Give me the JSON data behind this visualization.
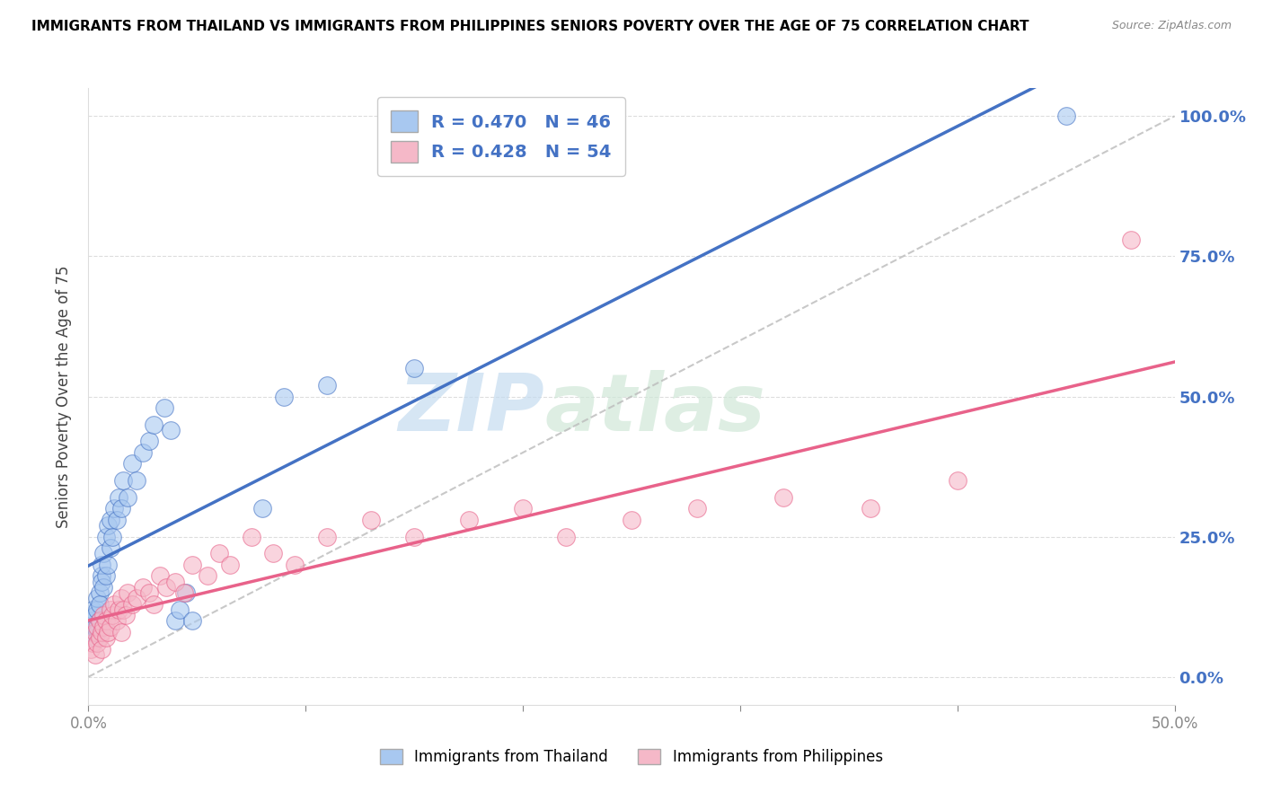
{
  "title": "IMMIGRANTS FROM THAILAND VS IMMIGRANTS FROM PHILIPPINES SENIORS POVERTY OVER THE AGE OF 75 CORRELATION CHART",
  "source": "Source: ZipAtlas.com",
  "ylabel": "Seniors Poverty Over the Age of 75",
  "xlim": [
    0.0,
    0.5
  ],
  "ylim": [
    -0.05,
    1.05
  ],
  "ytick_labels": [
    "0.0%",
    "25.0%",
    "50.0%",
    "75.0%",
    "100.0%"
  ],
  "ytick_values": [
    0.0,
    0.25,
    0.5,
    0.75,
    1.0
  ],
  "r_thailand": 0.47,
  "n_thailand": 46,
  "r_philippines": 0.428,
  "n_philippines": 54,
  "color_thailand": "#A8C8F0",
  "color_philippines": "#F5B8C8",
  "color_trend_thailand": "#4472C4",
  "color_trend_philippines": "#E8628A",
  "color_dashed": "#BBBBBB",
  "thailand_x": [
    0.001,
    0.002,
    0.002,
    0.003,
    0.003,
    0.003,
    0.004,
    0.004,
    0.004,
    0.005,
    0.005,
    0.005,
    0.006,
    0.006,
    0.006,
    0.007,
    0.007,
    0.008,
    0.008,
    0.009,
    0.009,
    0.01,
    0.01,
    0.011,
    0.012,
    0.013,
    0.014,
    0.015,
    0.016,
    0.018,
    0.02,
    0.022,
    0.025,
    0.028,
    0.03,
    0.035,
    0.038,
    0.04,
    0.042,
    0.045,
    0.048,
    0.08,
    0.09,
    0.11,
    0.15,
    0.45
  ],
  "thailand_y": [
    0.08,
    0.1,
    0.12,
    0.07,
    0.09,
    0.11,
    0.08,
    0.12,
    0.14,
    0.1,
    0.15,
    0.13,
    0.18,
    0.17,
    0.2,
    0.16,
    0.22,
    0.18,
    0.25,
    0.2,
    0.27,
    0.23,
    0.28,
    0.25,
    0.3,
    0.28,
    0.32,
    0.3,
    0.35,
    0.32,
    0.38,
    0.35,
    0.4,
    0.42,
    0.45,
    0.48,
    0.44,
    0.1,
    0.12,
    0.15,
    0.1,
    0.3,
    0.5,
    0.52,
    0.55,
    1.0
  ],
  "philippines_x": [
    0.001,
    0.002,
    0.003,
    0.003,
    0.004,
    0.004,
    0.005,
    0.005,
    0.006,
    0.006,
    0.007,
    0.007,
    0.008,
    0.008,
    0.009,
    0.01,
    0.01,
    0.011,
    0.012,
    0.013,
    0.014,
    0.015,
    0.015,
    0.016,
    0.017,
    0.018,
    0.02,
    0.022,
    0.025,
    0.028,
    0.03,
    0.033,
    0.036,
    0.04,
    0.044,
    0.048,
    0.055,
    0.06,
    0.065,
    0.075,
    0.085,
    0.095,
    0.11,
    0.13,
    0.15,
    0.175,
    0.2,
    0.22,
    0.25,
    0.28,
    0.32,
    0.36,
    0.4,
    0.48
  ],
  "philippines_y": [
    0.05,
    0.06,
    0.04,
    0.08,
    0.06,
    0.09,
    0.07,
    0.1,
    0.05,
    0.08,
    0.09,
    0.11,
    0.07,
    0.1,
    0.08,
    0.12,
    0.09,
    0.11,
    0.13,
    0.1,
    0.12,
    0.08,
    0.14,
    0.12,
    0.11,
    0.15,
    0.13,
    0.14,
    0.16,
    0.15,
    0.13,
    0.18,
    0.16,
    0.17,
    0.15,
    0.2,
    0.18,
    0.22,
    0.2,
    0.25,
    0.22,
    0.2,
    0.25,
    0.28,
    0.25,
    0.28,
    0.3,
    0.25,
    0.28,
    0.3,
    0.32,
    0.3,
    0.35,
    0.78
  ]
}
